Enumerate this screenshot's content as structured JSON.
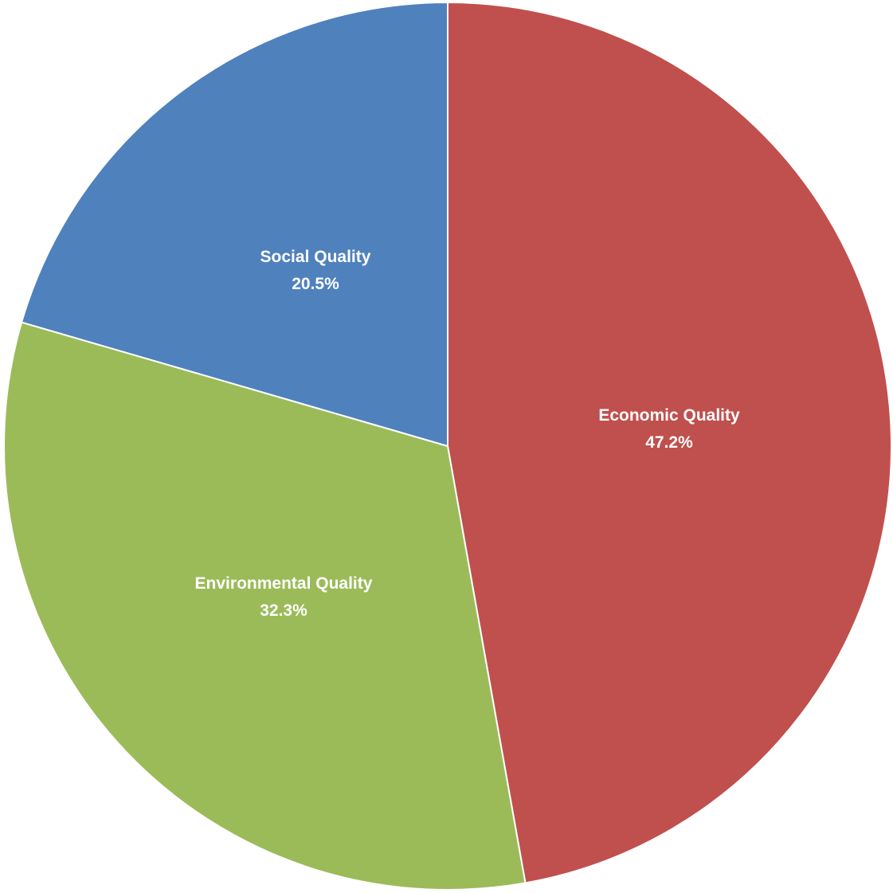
{
  "chart_data": {
    "type": "pie",
    "slices": [
      {
        "label": "Economic Quality",
        "value": 47.2,
        "value_label": "47.2%",
        "color": "#C0504D"
      },
      {
        "label": "Environmental Quality",
        "value": 32.3,
        "value_label": "32.3%",
        "color": "#9BBB59"
      },
      {
        "label": "Social Quality",
        "value": 20.5,
        "value_label": "20.5%",
        "color": "#4F81BD"
      }
    ],
    "start_angle": "12 o'clock",
    "direction": "clockwise",
    "labels_position": "inside"
  }
}
